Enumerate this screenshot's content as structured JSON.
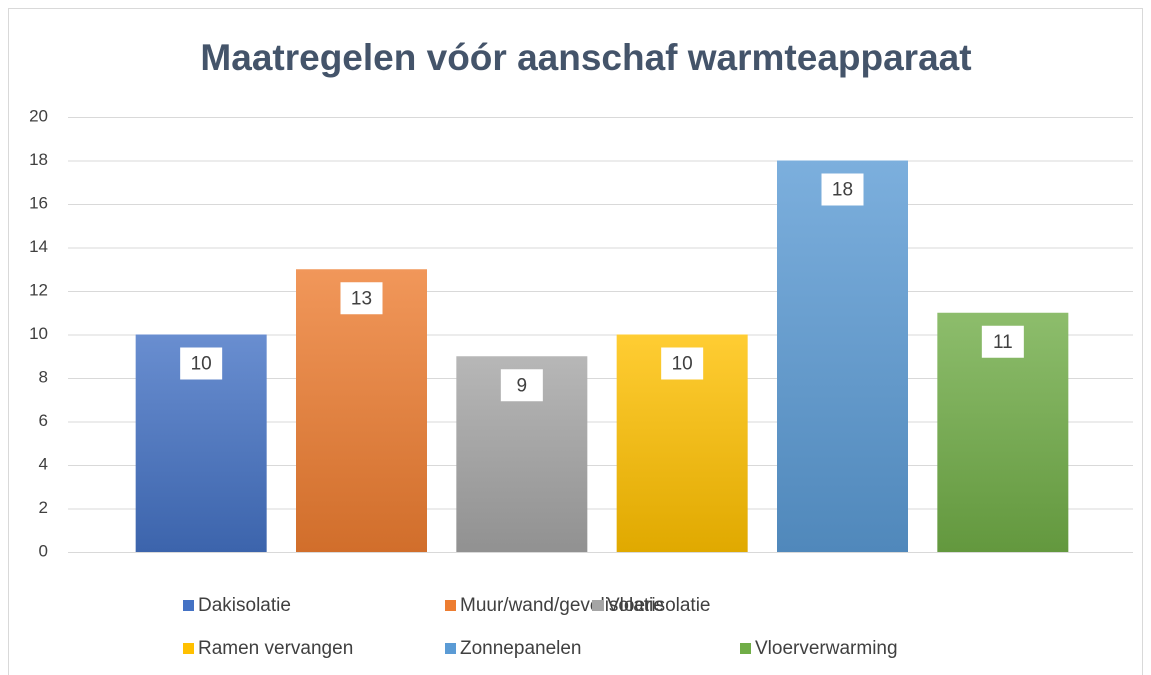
{
  "chart_data": {
    "type": "bar",
    "title": "Maatregelen vóór aanschaf warmteapparaat",
    "categories": [
      "Dakisolatie",
      "Muur/wand/gevelisolatie",
      "Vloerisolatie",
      "Ramen vervangen",
      "Zonnepanelen",
      "Vloerverwarming"
    ],
    "values": [
      10,
      13,
      9,
      10,
      18,
      11
    ],
    "colors": [
      "#4472c4",
      "#ed7d31",
      "#a5a5a5",
      "#ffc000",
      "#5b9bd5",
      "#70ad47"
    ],
    "ylim": [
      0,
      20
    ],
    "yticks": [
      0,
      2,
      4,
      6,
      8,
      10,
      12,
      14,
      16,
      18,
      20
    ],
    "grid": true,
    "legend": "bottom"
  }
}
